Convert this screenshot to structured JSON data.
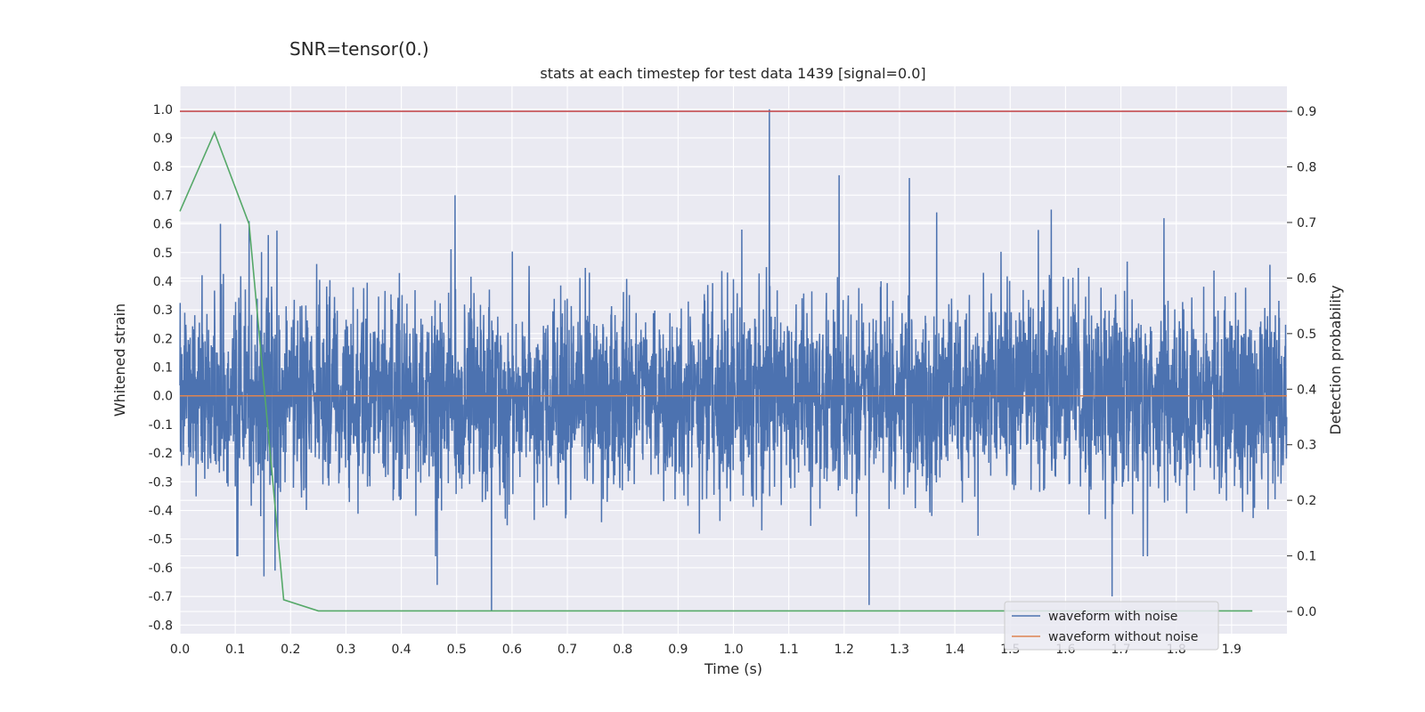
{
  "suptitle": "SNR=tensor(0.)",
  "chart_data": {
    "type": "line",
    "title": "stats at each timestep for test data 1439 [signal=0.0]",
    "xlabel": "Time (s)",
    "ylabel": "Whitened strain",
    "y2label": "Detection probability",
    "xlim": [
      0.0,
      2.0
    ],
    "ylim": [
      -0.83,
      1.08
    ],
    "y2lim": [
      -0.04,
      0.945
    ],
    "xticks": [
      "0.0",
      "0.1",
      "0.2",
      "0.3",
      "0.4",
      "0.5",
      "0.6",
      "0.7",
      "0.8",
      "0.9",
      "1.0",
      "1.1",
      "1.2",
      "1.3",
      "1.4",
      "1.5",
      "1.6",
      "1.7",
      "1.8",
      "1.9"
    ],
    "yticks": [
      "1.0",
      "0.9",
      "0.8",
      "0.7",
      "0.6",
      "0.5",
      "0.4",
      "0.3",
      "0.2",
      "0.1",
      "0.0",
      "-0.1",
      "-0.2",
      "-0.3",
      "-0.4",
      "-0.5",
      "-0.6",
      "-0.7",
      "-0.8"
    ],
    "y2ticks": [
      "0.9",
      "0.8",
      "0.7",
      "0.6",
      "0.5",
      "0.4",
      "0.3",
      "0.2",
      "0.1",
      "0.0"
    ],
    "grid": true,
    "legend_position": "lower-right",
    "series": [
      {
        "name": "waveform with noise",
        "axis": "left",
        "color": "#4c72b0",
        "sample_rate": 2048,
        "sample_count": 4096,
        "std": 0.17,
        "peaks": [
          {
            "x": 1.065,
            "y": 1.0
          },
          {
            "x": 1.191,
            "y": 0.77
          },
          {
            "x": 1.318,
            "y": 0.76
          },
          {
            "x": 0.497,
            "y": 0.7
          },
          {
            "x": 0.125,
            "y": 0.61
          },
          {
            "x": 0.073,
            "y": 0.6
          },
          {
            "x": 1.574,
            "y": 0.65
          },
          {
            "x": 1.778,
            "y": 0.62
          },
          {
            "x": 1.367,
            "y": 0.64
          },
          {
            "x": 0.563,
            "y": -0.75
          },
          {
            "x": 1.245,
            "y": -0.73
          },
          {
            "x": 1.684,
            "y": -0.7
          },
          {
            "x": 0.465,
            "y": -0.66
          },
          {
            "x": 0.152,
            "y": -0.63
          },
          {
            "x": 0.172,
            "y": -0.61
          }
        ]
      },
      {
        "name": "waveform without noise",
        "axis": "left",
        "color": "#dd8452",
        "x": [
          0.0,
          2.0
        ],
        "y": [
          0.0,
          0.0
        ]
      },
      {
        "name": "",
        "axis": "right",
        "color": "#55a868",
        "x": [
          0.0,
          0.0625,
          0.125,
          0.1875,
          0.25,
          0.3125,
          0.375,
          0.4375,
          0.5,
          0.5625,
          0.625,
          0.6875,
          0.75,
          0.8125,
          0.875,
          0.9375,
          1.0,
          1.0625,
          1.125,
          1.1875,
          1.25,
          1.3125,
          1.375,
          1.4375,
          1.5,
          1.5625,
          1.625,
          1.6875,
          1.75,
          1.8125,
          1.875,
          1.9375
        ],
        "y": [
          0.72,
          0.862,
          0.697,
          0.021,
          0.001,
          0.001,
          0.001,
          0.001,
          0.001,
          0.001,
          0.001,
          0.001,
          0.001,
          0.001,
          0.001,
          0.001,
          0.001,
          0.001,
          0.001,
          0.001,
          0.001,
          0.001,
          0.001,
          0.001,
          0.001,
          0.001,
          0.001,
          0.001,
          0.001,
          0.001,
          0.001,
          0.001
        ]
      },
      {
        "name": "",
        "axis": "right",
        "color": "#c44e52",
        "x": [
          0.0,
          2.0
        ],
        "y": [
          0.9,
          0.9
        ]
      }
    ]
  }
}
